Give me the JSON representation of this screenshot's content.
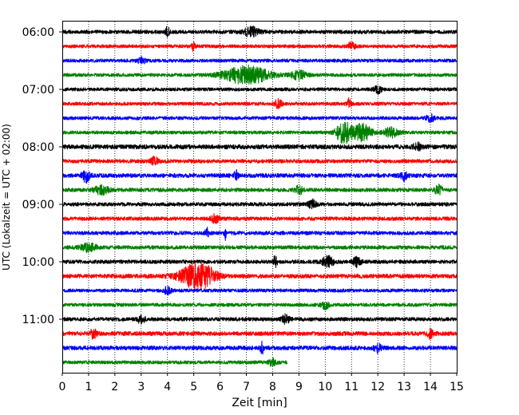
{
  "chart_data": {
    "type": "line",
    "title": "",
    "xlabel": "Zeit  [min]",
    "ylabel": "UTC (Lokalzeit = UTC + 02:00)",
    "xlim": [
      0,
      15
    ],
    "x_ticks": [
      0,
      1,
      2,
      3,
      4,
      5,
      6,
      7,
      8,
      9,
      10,
      11,
      12,
      13,
      14,
      15
    ],
    "x_tick_labels": [
      "0",
      "1",
      "2",
      "3",
      "4",
      "5",
      "6",
      "7",
      "8",
      "9",
      "10",
      "11",
      "12",
      "13",
      "14",
      "15"
    ],
    "y_tick_labels": [
      "06:00",
      "07:00",
      "08:00",
      "09:00",
      "10:00",
      "11:00"
    ],
    "y_tick_trace_index": [
      0,
      4,
      8,
      12,
      16,
      20
    ],
    "grid": "vertical-dotted",
    "colors": [
      "#000000",
      "#ff0000",
      "#0000ff",
      "#008000"
    ],
    "series": [
      {
        "start_utc": "06:00",
        "color": "#000000",
        "end_min": 15,
        "noise": 0.55,
        "events": [
          [
            4.0,
            1.6,
            0.05
          ],
          [
            7.2,
            1.3,
            0.2
          ]
        ]
      },
      {
        "start_utc": "06:15",
        "color": "#ff0000",
        "end_min": 15,
        "noise": 0.5,
        "events": [
          [
            5.0,
            1.5,
            0.05
          ],
          [
            11.0,
            1.2,
            0.1
          ]
        ]
      },
      {
        "start_utc": "06:30",
        "color": "#0000ff",
        "end_min": 15,
        "noise": 0.5,
        "events": [
          [
            3.0,
            1.1,
            0.1
          ]
        ]
      },
      {
        "start_utc": "06:45",
        "color": "#008000",
        "end_min": 15,
        "noise": 0.5,
        "events": [
          [
            7.0,
            2.6,
            0.6
          ],
          [
            9.0,
            1.3,
            0.2
          ]
        ]
      },
      {
        "start_utc": "07:00",
        "color": "#000000",
        "end_min": 15,
        "noise": 0.5,
        "events": [
          [
            12.0,
            1.1,
            0.1
          ]
        ]
      },
      {
        "start_utc": "07:15",
        "color": "#ff0000",
        "end_min": 15,
        "noise": 0.5,
        "events": [
          [
            8.2,
            1.3,
            0.1
          ],
          [
            10.9,
            1.4,
            0.05
          ]
        ]
      },
      {
        "start_utc": "07:30",
        "color": "#0000ff",
        "end_min": 15,
        "noise": 0.5,
        "events": [
          [
            14.0,
            1.1,
            0.1
          ]
        ]
      },
      {
        "start_utc": "07:45",
        "color": "#008000",
        "end_min": 15,
        "noise": 0.5,
        "events": [
          [
            10.7,
            3.2,
            0.2
          ],
          [
            11.4,
            2.4,
            0.25
          ],
          [
            12.5,
            1.3,
            0.2
          ]
        ]
      },
      {
        "start_utc": "08:00",
        "color": "#000000",
        "end_min": 15,
        "noise": 0.65,
        "events": [
          [
            13.5,
            1.2,
            0.1
          ]
        ]
      },
      {
        "start_utc": "08:15",
        "color": "#ff0000",
        "end_min": 15,
        "noise": 0.55,
        "events": [
          [
            3.5,
            1.2,
            0.1
          ]
        ]
      },
      {
        "start_utc": "08:30",
        "color": "#0000ff",
        "end_min": 15,
        "noise": 0.6,
        "events": [
          [
            0.9,
            2.0,
            0.1
          ],
          [
            6.6,
            1.6,
            0.05
          ],
          [
            13.0,
            1.2,
            0.1
          ]
        ]
      },
      {
        "start_utc": "08:45",
        "color": "#008000",
        "end_min": 15,
        "noise": 0.55,
        "events": [
          [
            1.5,
            1.2,
            0.2
          ],
          [
            9.0,
            1.2,
            0.1
          ],
          [
            14.3,
            1.3,
            0.1
          ]
        ]
      },
      {
        "start_utc": "09:00",
        "color": "#000000",
        "end_min": 15,
        "noise": 0.55,
        "events": [
          [
            9.5,
            1.2,
            0.1
          ]
        ]
      },
      {
        "start_utc": "09:15",
        "color": "#ff0000",
        "end_min": 15,
        "noise": 0.55,
        "events": [
          [
            5.8,
            1.2,
            0.1
          ]
        ]
      },
      {
        "start_utc": "09:30",
        "color": "#0000ff",
        "end_min": 15,
        "noise": 0.55,
        "events": [
          [
            5.5,
            1.4,
            0.05
          ],
          [
            6.2,
            1.7,
            0.03
          ]
        ]
      },
      {
        "start_utc": "09:45",
        "color": "#008000",
        "end_min": 15,
        "noise": 0.55,
        "events": [
          [
            1.0,
            1.2,
            0.2
          ]
        ]
      },
      {
        "start_utc": "10:00",
        "color": "#000000",
        "end_min": 15,
        "noise": 0.55,
        "events": [
          [
            8.1,
            1.8,
            0.05
          ],
          [
            10.1,
            1.5,
            0.15
          ],
          [
            11.2,
            1.3,
            0.1
          ]
        ]
      },
      {
        "start_utc": "10:15",
        "color": "#ff0000",
        "end_min": 15,
        "noise": 0.6,
        "events": [
          [
            5.0,
            3.2,
            0.4
          ],
          [
            5.5,
            1.6,
            0.3
          ]
        ]
      },
      {
        "start_utc": "10:30",
        "color": "#0000ff",
        "end_min": 15,
        "noise": 0.5,
        "events": [
          [
            4.0,
            1.1,
            0.1
          ]
        ]
      },
      {
        "start_utc": "10:45",
        "color": "#008000",
        "end_min": 15,
        "noise": 0.5,
        "events": [
          [
            10.0,
            1.1,
            0.1
          ]
        ]
      },
      {
        "start_utc": "11:00",
        "color": "#000000",
        "end_min": 15,
        "noise": 0.55,
        "events": [
          [
            3.0,
            1.1,
            0.1
          ],
          [
            8.5,
            1.2,
            0.1
          ]
        ]
      },
      {
        "start_utc": "11:15",
        "color": "#ff0000",
        "end_min": 15,
        "noise": 0.6,
        "events": [
          [
            1.2,
            1.3,
            0.1
          ],
          [
            14.0,
            1.2,
            0.1
          ]
        ]
      },
      {
        "start_utc": "11:30",
        "color": "#0000ff",
        "end_min": 15,
        "noise": 0.6,
        "events": [
          [
            7.6,
            1.5,
            0.05
          ],
          [
            12.0,
            1.2,
            0.1
          ]
        ]
      },
      {
        "start_utc": "11:45",
        "color": "#008000",
        "end_min": 8.55,
        "noise": 0.5,
        "events": [
          [
            8.0,
            1.1,
            0.1
          ]
        ]
      }
    ]
  }
}
